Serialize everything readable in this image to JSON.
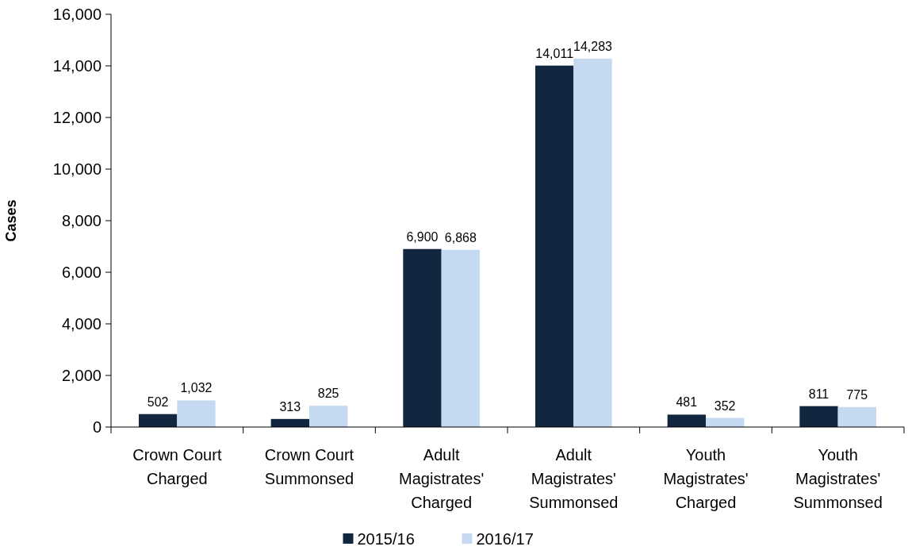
{
  "chart_data": {
    "type": "bar",
    "ylabel": "Cases",
    "categories": [
      "Crown Court Charged",
      "Crown Court Summonsed",
      "Adult Magistrates' Charged",
      "Adult Magistrates' Summonsed",
      "Youth Magistrates' Charged",
      "Youth Magistrates' Summonsed"
    ],
    "series": [
      {
        "name": "2015/16",
        "color": "#12263f",
        "values": [
          502,
          313,
          6900,
          14011,
          481,
          811
        ],
        "value_labels": [
          "502",
          "313",
          "6,900",
          "14,011",
          "481",
          "811"
        ]
      },
      {
        "name": "2016/17",
        "color": "#c5d9f1",
        "values": [
          1032,
          825,
          6868,
          14283,
          352,
          775
        ],
        "value_labels": [
          "1,032",
          "825",
          "6,868",
          "14,283",
          "352",
          "775"
        ]
      }
    ],
    "ylim": [
      0,
      16000
    ],
    "yticks": [
      {
        "value": 0,
        "label": "0"
      },
      {
        "value": 2000,
        "label": "2,000"
      },
      {
        "value": 4000,
        "label": "4,000"
      },
      {
        "value": 6000,
        "label": "6,000"
      },
      {
        "value": 8000,
        "label": "8,000"
      },
      {
        "value": 10000,
        "label": "10,000"
      },
      {
        "value": 12000,
        "label": "12,000"
      },
      {
        "value": 14000,
        "label": "14,000"
      },
      {
        "value": 16000,
        "label": "16,000"
      }
    ],
    "grid": false,
    "legend": "bottom"
  }
}
